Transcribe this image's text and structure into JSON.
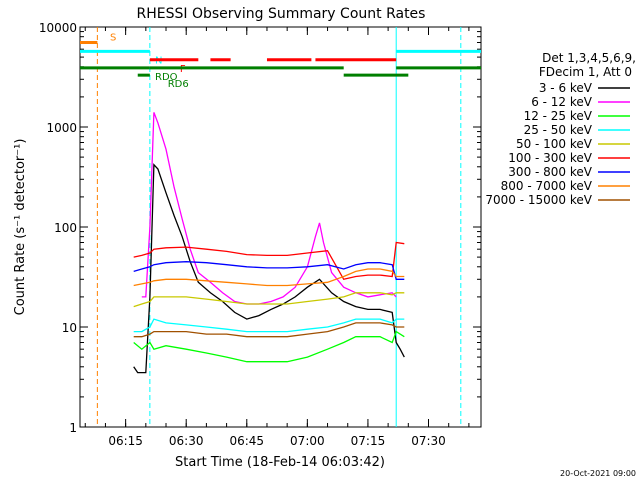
{
  "chart_data": {
    "type": "line",
    "title": "RHESSI Observing Summary Count Rates",
    "xlabel": "Start Time (18-Feb-14 06:03:42)",
    "ylabel": "Count Rate (s⁻¹ detector⁻¹)",
    "y_scale": "log",
    "ylim": [
      1,
      10000
    ],
    "xlim": [
      "06:03:42",
      "07:43:00"
    ],
    "x_ticks": [
      "06:15",
      "06:30",
      "06:45",
      "07:00",
      "07:15",
      "07:30"
    ],
    "y_ticks": [
      "1",
      "10",
      "100",
      "1000",
      "10000"
    ],
    "legend_header": [
      "Det 1,3,4,5,6,9,",
      "FDecim 1, Att 0"
    ],
    "legend_placement": "right",
    "footer_date": "20-Oct-2021 09:00",
    "vertical_markers": [
      {
        "time": "06:08",
        "color": "#ff8000",
        "style": "dashed"
      },
      {
        "time": "06:21",
        "color": "#00ffff",
        "style": "dashed"
      },
      {
        "time": "07:22",
        "color": "#00ffff",
        "style": "solid"
      },
      {
        "time": "07:38",
        "color": "#00ffff",
        "style": "dashed"
      }
    ],
    "flag_bars": [
      {
        "label": "S",
        "color": "#ff8000",
        "y": 7000,
        "segments": [
          [
            "06:03:42",
            "06:08"
          ]
        ]
      },
      {
        "label": "N",
        "color": "#00ffff",
        "y": 5700,
        "segments": [
          [
            "06:03:42",
            "06:21"
          ],
          [
            "07:22",
            "07:43"
          ]
        ]
      },
      {
        "label": "F",
        "color": "#ff0000",
        "y": 4700,
        "segments": [
          [
            "06:21",
            "06:33"
          ],
          [
            "06:36",
            "06:41"
          ],
          [
            "06:50",
            "07:01"
          ],
          [
            "07:02",
            "07:22"
          ]
        ]
      },
      {
        "label": "RDO",
        "color": "#007f00",
        "y": 3900,
        "segments": [
          [
            "06:03:42",
            "06:21"
          ],
          [
            "06:21",
            "07:09"
          ],
          [
            "07:22",
            "07:43"
          ]
        ]
      },
      {
        "label": "RD6",
        "color": "#007f00",
        "y": 3300,
        "segments": [
          [
            "06:18",
            "06:21"
          ],
          [
            "07:09",
            "07:25"
          ]
        ]
      }
    ],
    "series": [
      {
        "name": "3 - 6 keV",
        "color": "#000000",
        "x": [
          "06:17",
          "06:18",
          "06:19",
          "06:20",
          "06:21",
          "06:22",
          "06:23",
          "06:25",
          "06:27",
          "06:29",
          "06:31",
          "06:33",
          "06:36",
          "06:39",
          "06:42",
          "06:45",
          "06:48",
          "06:51",
          "06:54",
          "06:57",
          "07:00",
          "07:03",
          "07:06",
          "07:09",
          "07:12",
          "07:15",
          "07:18",
          "07:21",
          "07:22",
          "07:23",
          "07:24"
        ],
        "y": [
          4,
          3.5,
          3.5,
          3.5,
          20,
          420,
          380,
          220,
          130,
          80,
          45,
          28,
          22,
          18,
          14,
          12,
          13,
          15,
          17,
          20,
          25,
          30,
          22,
          18,
          16,
          15,
          15,
          14,
          7,
          6,
          5
        ]
      },
      {
        "name": "6 - 12 keV",
        "color": "#ff00ff",
        "x": [
          "06:19",
          "06:20",
          "06:21",
          "06:22",
          "06:23",
          "06:25",
          "06:27",
          "06:29",
          "06:31",
          "06:33",
          "06:36",
          "06:39",
          "06:42",
          "06:45",
          "06:48",
          "06:51",
          "06:54",
          "06:57",
          "07:00",
          "07:02",
          "07:03",
          "07:04",
          "07:06",
          "07:09",
          "07:12",
          "07:15",
          "07:18",
          "07:21",
          "07:22"
        ],
        "y": [
          20,
          20,
          100,
          1400,
          1100,
          600,
          250,
          120,
          60,
          35,
          28,
          22,
          18,
          17,
          17,
          18,
          20,
          25,
          40,
          80,
          110,
          70,
          35,
          25,
          22,
          20,
          21,
          22,
          20
        ]
      },
      {
        "name": "12 - 25 keV",
        "color": "#00ff00",
        "x": [
          "06:17",
          "06:19",
          "06:21",
          "06:22",
          "06:25",
          "06:30",
          "06:35",
          "06:40",
          "06:45",
          "06:50",
          "06:55",
          "07:00",
          "07:05",
          "07:09",
          "07:12",
          "07:15",
          "07:18",
          "07:21",
          "07:22",
          "07:24"
        ],
        "y": [
          7,
          6,
          7,
          6,
          6.5,
          6,
          5.5,
          5,
          4.5,
          4.5,
          4.5,
          5,
          6,
          7,
          8,
          8,
          8,
          7,
          9,
          8
        ]
      },
      {
        "name": "25 - 50 keV",
        "color": "#00ffff",
        "x": [
          "06:17",
          "06:19",
          "06:21",
          "06:22",
          "06:25",
          "06:30",
          "06:35",
          "06:40",
          "06:45",
          "06:50",
          "06:55",
          "07:00",
          "07:05",
          "07:09",
          "07:12",
          "07:15",
          "07:18",
          "07:21",
          "07:22",
          "07:24"
        ],
        "y": [
          9,
          9,
          10,
          12,
          11,
          10.5,
          10,
          9.5,
          9,
          9,
          9,
          9.5,
          10,
          11,
          12,
          12,
          12,
          11,
          12,
          12
        ]
      },
      {
        "name": "50 - 100 keV",
        "color": "#c8c800",
        "x": [
          "06:17",
          "06:19",
          "06:21",
          "06:22",
          "06:25",
          "06:30",
          "06:35",
          "06:40",
          "06:45",
          "06:50",
          "06:55",
          "07:00",
          "07:05",
          "07:09",
          "07:12",
          "07:15",
          "07:18",
          "07:21",
          "07:22",
          "07:24"
        ],
        "y": [
          16,
          17,
          18,
          20,
          20,
          20,
          19,
          18,
          17,
          17,
          17,
          18,
          19,
          20,
          22,
          22,
          22,
          21,
          22,
          22
        ]
      },
      {
        "name": "100 - 300 keV",
        "color": "#ff0000",
        "x": [
          "06:17",
          "06:19",
          "06:21",
          "06:22",
          "06:25",
          "06:30",
          "06:35",
          "06:40",
          "06:45",
          "06:50",
          "06:55",
          "07:00",
          "07:05",
          "07:09",
          "07:12",
          "07:15",
          "07:18",
          "07:21",
          "07:22",
          "07:24"
        ],
        "y": [
          50,
          52,
          55,
          60,
          62,
          63,
          60,
          57,
          53,
          52,
          52,
          55,
          58,
          30,
          32,
          33,
          33,
          32,
          70,
          68
        ]
      },
      {
        "name": "300 - 800 keV",
        "color": "#0000ff",
        "x": [
          "06:17",
          "06:19",
          "06:21",
          "06:22",
          "06:25",
          "06:30",
          "06:35",
          "06:40",
          "06:45",
          "06:50",
          "06:55",
          "07:00",
          "07:05",
          "07:09",
          "07:12",
          "07:15",
          "07:18",
          "07:21",
          "07:22",
          "07:24"
        ],
        "y": [
          36,
          38,
          40,
          42,
          44,
          45,
          44,
          42,
          40,
          39,
          39,
          40,
          42,
          38,
          42,
          44,
          44,
          42,
          30,
          30
        ]
      },
      {
        "name": "800 - 7000 keV",
        "color": "#ff8000",
        "x": [
          "06:17",
          "06:19",
          "06:21",
          "06:22",
          "06:25",
          "06:30",
          "06:35",
          "06:40",
          "06:45",
          "06:50",
          "06:55",
          "07:00",
          "07:05",
          "07:09",
          "07:12",
          "07:15",
          "07:18",
          "07:21",
          "07:22",
          "07:24"
        ],
        "y": [
          26,
          27,
          28,
          29,
          30,
          30,
          29,
          28,
          27,
          26,
          26,
          27,
          28,
          32,
          36,
          38,
          38,
          36,
          32,
          32
        ]
      },
      {
        "name": "7000 - 15000 keV",
        "color": "#a05000",
        "x": [
          "06:17",
          "06:19",
          "06:21",
          "06:22",
          "06:25",
          "06:30",
          "06:35",
          "06:40",
          "06:45",
          "06:50",
          "06:55",
          "07:00",
          "07:05",
          "07:09",
          "07:12",
          "07:15",
          "07:18",
          "07:21",
          "07:22",
          "07:24"
        ],
        "y": [
          8,
          8,
          8.5,
          9,
          9,
          9,
          8.5,
          8.5,
          8,
          8,
          8,
          8.5,
          9,
          10,
          11,
          11,
          11,
          10.5,
          10,
          10
        ]
      }
    ]
  }
}
